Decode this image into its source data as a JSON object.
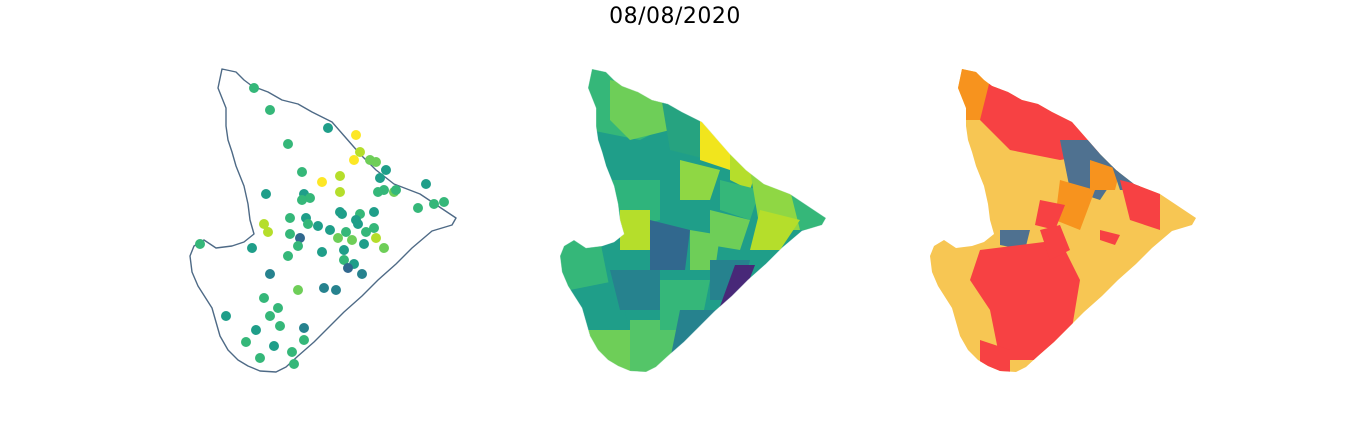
{
  "title": "08/08/2020",
  "colors": {
    "outline": "#4e6a86",
    "viridis": [
      "#440154",
      "#31688e",
      "#26828e",
      "#1f9e89",
      "#35b779",
      "#6ece58",
      "#b5de2b",
      "#fde725"
    ],
    "classes": {
      "red": "#f74143",
      "orange": "#f7931e",
      "yellow": "#f7c653",
      "slate": "#4f7190"
    }
  }
}
